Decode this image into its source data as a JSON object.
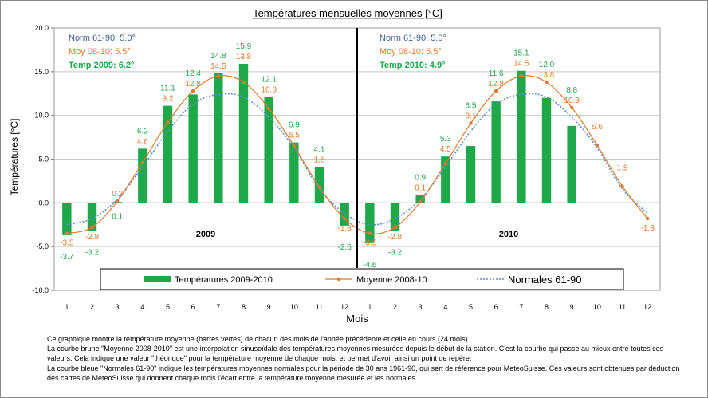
{
  "chart_data": {
    "type": "bar",
    "title": "Températures mensuelles moyennes  [°C]",
    "ylabel": "Températures [°C]",
    "xlabel": "Mois",
    "ylim": [
      -10,
      20
    ],
    "yticks": [
      "20.0",
      "15.0",
      "10.0",
      "5.0",
      "0.0",
      "-5.0",
      "-10.0"
    ],
    "categories": [
      "1",
      "2",
      "3",
      "4",
      "5",
      "6",
      "7",
      "8",
      "9",
      "10",
      "11",
      "12",
      "1",
      "2",
      "3",
      "4",
      "5",
      "6",
      "7",
      "8",
      "9",
      "10",
      "11",
      "12"
    ],
    "year_labels": [
      "2009",
      "2010"
    ],
    "series": [
      {
        "name": "Températures 2009-2010",
        "kind": "bar",
        "color": "#1ea84a",
        "values": [
          -3.7,
          -3.2,
          0.1,
          6.2,
          11.1,
          12.4,
          14.8,
          15.9,
          12.1,
          6.9,
          4.1,
          -2.6,
          -4.6,
          -3.2,
          0.9,
          5.3,
          6.5,
          11.6,
          15.1,
          12.0,
          8.8,
          null,
          null,
          null
        ],
        "labels": [
          "-3.7",
          "-3.2",
          "0.1",
          "6.2",
          "11.1",
          "12.4",
          "14.8",
          "15.9",
          "12.1",
          "6.9",
          "4.1",
          "-2.6",
          "-4.6",
          "-3.2",
          "0.9",
          "5.3",
          "6.5",
          "11.6",
          "15.1",
          "12.0",
          "8.8",
          "",
          "",
          ""
        ]
      },
      {
        "name": "Moyenne 2008-10",
        "kind": "line",
        "color": "#e07a2a",
        "values": [
          -3.5,
          -2.8,
          0.2,
          4.6,
          9.2,
          12.8,
          14.5,
          13.8,
          10.8,
          6.5,
          1.8,
          -1.8,
          -3.5,
          -2.8,
          0.1,
          4.5,
          9.1,
          12.8,
          14.5,
          13.8,
          10.9,
          6.6,
          1.9,
          -1.8
        ],
        "labels": [
          "-3.5",
          "-2.8",
          "0.2",
          "4.6",
          "9.2",
          "12.8",
          "14.5",
          "13.8",
          "10.8",
          "6.5",
          "1.8",
          "-1.8",
          "-3.5",
          "-2.8",
          "0.1",
          "4.5",
          "9.1",
          "12.8",
          "14.5",
          "13.8",
          "10.9",
          "6.6",
          "1.9",
          "-1.8"
        ]
      },
      {
        "name": "Normales 61-90",
        "kind": "line",
        "color": "#5b8fd6",
        "values": [
          -2.5,
          -1.8,
          0.4,
          4.1,
          8.2,
          11.3,
          12.4,
          12.1,
          9.8,
          6.3,
          1.6,
          -1.2,
          -2.5,
          -1.8,
          0.4,
          4.1,
          8.2,
          11.3,
          12.4,
          12.1,
          9.8,
          6.3,
          1.6,
          -1.2
        ]
      }
    ],
    "annotations": [
      {
        "lines": [
          {
            "text": "Norm 61-90: 5.0°",
            "color": "#3f5f95",
            "bold": false
          },
          {
            "text": "Moy 08-10:   5.5°",
            "color": "#e07a2a",
            "bold": false
          },
          {
            "text": "Temp 2009:  6.2°",
            "color": "#1ea84a",
            "bold": true
          }
        ]
      },
      {
        "lines": [
          {
            "text": "Norm 61-90: 5.0°",
            "color": "#3f5f95",
            "bold": false
          },
          {
            "text": "Moy 08-10:   5.5°",
            "color": "#e07a2a",
            "bold": false
          },
          {
            "text": "Temp 2010:  4.9°",
            "color": "#1ea84a",
            "bold": true
          }
        ]
      }
    ],
    "grid": true,
    "legend_position": "bottom"
  },
  "description": [
    "Ce graphique montre la température moyenne (barres vertes) de chacun des mois de l'année précédente et celle en cours (24 mois).",
    "La courbe brune \"Moyenne 2008-2010\" est une interpolation sinusoïdale des  températures moyennes mesurées depuis le début de la station. C'est la courbe qui passe au mieux entre toutes ces valeurs. Cela indique une valeur \"théorique\" pour la température moyenne de chaque mois, et permet d'avoir ainsi un point de repère.",
    "La courbe bleue \"Normales 61-90\" indique les  températures moyennes normales pour la période de 30 ans 1961-90, qui sert de référence pour MeteoSuisse. Ces valeurs sont obtenues par déduction des cartes de MeteoSuisse qui donnent chaque mois l'écart entre la température moyenne mesurée et les normales."
  ]
}
